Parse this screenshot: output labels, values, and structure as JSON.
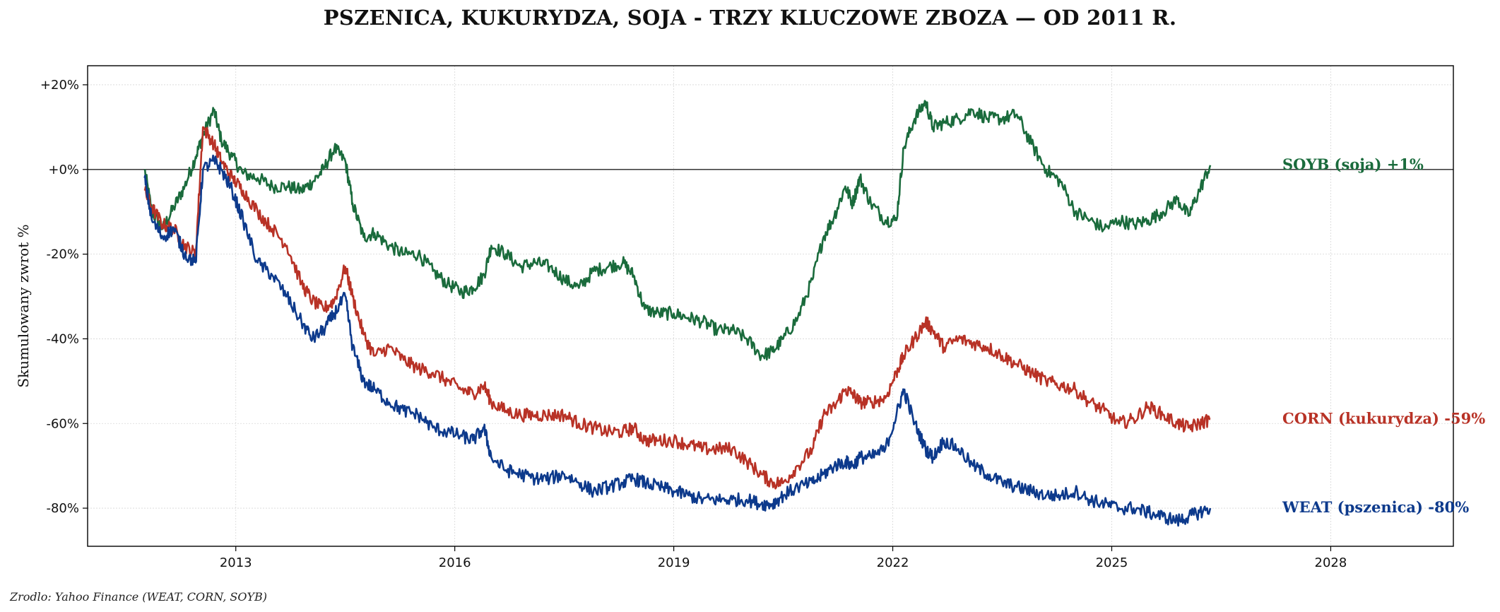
{
  "chart_data": {
    "type": "line",
    "title": "PSZENICA, KUKURYDZA, SOJA - TRZY KLUCZOWE ZBOZA — OD 2011 R.",
    "ylabel": "Skumulowany zwrot %",
    "xlabel": "",
    "x_ticks": [
      "2013",
      "2016",
      "2019",
      "2022",
      "2025",
      "2028"
    ],
    "x_tick_values": [
      2013,
      2016,
      2019,
      2022,
      2025,
      2028
    ],
    "y_ticks": [
      "+20%",
      "+0%",
      "-20%",
      "-40%",
      "-60%",
      "-80%"
    ],
    "y_tick_values": [
      20,
      0,
      -20,
      -40,
      -60,
      -80
    ],
    "xlim": [
      2010.97,
      2029.68
    ],
    "ylim": [
      -89,
      24.5
    ],
    "grid": true,
    "zero_line": true,
    "series": [
      {
        "name": "SOYB (soja)",
        "end_label": "SOYB (soja)  +1%",
        "color": "#1a6b3c",
        "x": [
          2011.75,
          2011.85,
          2012.0,
          2012.15,
          2012.3,
          2012.45,
          2012.55,
          2012.7,
          2012.8,
          2012.95,
          2013.1,
          2013.3,
          2013.5,
          2013.7,
          2013.9,
          2014.05,
          2014.2,
          2014.35,
          2014.5,
          2014.6,
          2014.75,
          2014.9,
          2015.1,
          2015.3,
          2015.5,
          2015.7,
          2015.9,
          2016.1,
          2016.25,
          2016.4,
          2016.5,
          2016.7,
          2016.9,
          2017.1,
          2017.3,
          2017.5,
          2017.7,
          2017.9,
          2018.1,
          2018.3,
          2018.45,
          2018.6,
          2018.8,
          2019.0,
          2019.2,
          2019.4,
          2019.6,
          2019.8,
          2020.0,
          2020.2,
          2020.35,
          2020.5,
          2020.7,
          2020.9,
          2021.05,
          2021.2,
          2021.35,
          2021.45,
          2021.55,
          2021.7,
          2021.9,
          2022.05,
          2022.15,
          2022.3,
          2022.45,
          2022.55,
          2022.7,
          2022.9,
          2023.1,
          2023.3,
          2023.5,
          2023.7,
          2023.9,
          2024.1,
          2024.3,
          2024.5,
          2024.7,
          2024.9,
          2025.1,
          2025.3,
          2025.5,
          2025.7,
          2025.9,
          2026.05,
          2026.2,
          2026.35
        ],
        "values": [
          0,
          -10,
          -14,
          -9,
          -4,
          3,
          8,
          14,
          7,
          3,
          -1,
          -2,
          -4,
          -4,
          -5,
          -3,
          0,
          5,
          2,
          -8,
          -16,
          -15,
          -18,
          -20,
          -20,
          -24,
          -27,
          -29,
          -28,
          -25,
          -18,
          -20,
          -23,
          -22,
          -23,
          -26,
          -28,
          -24,
          -23,
          -22,
          -25,
          -33,
          -34,
          -34,
          -35,
          -36,
          -38,
          -38,
          -40,
          -44,
          -43,
          -40,
          -35,
          -26,
          -16,
          -11,
          -4,
          -8,
          -2,
          -8,
          -12,
          -12,
          5,
          12,
          16,
          10,
          11,
          12,
          14,
          12,
          12,
          13,
          6,
          0,
          -3,
          -10,
          -12,
          -14,
          -12,
          -13,
          -12,
          -10,
          -7,
          -11,
          -5,
          1
        ]
      },
      {
        "name": "CORN (kukurydza)",
        "end_label": "CORN (kukurydza)  -59%",
        "color": "#b83226",
        "x": [
          2011.75,
          2011.85,
          2012.0,
          2012.15,
          2012.3,
          2012.45,
          2012.55,
          2012.7,
          2012.8,
          2012.95,
          2013.1,
          2013.3,
          2013.5,
          2013.7,
          2013.9,
          2014.05,
          2014.2,
          2014.35,
          2014.5,
          2014.6,
          2014.75,
          2014.9,
          2015.1,
          2015.3,
          2015.5,
          2015.7,
          2015.9,
          2016.1,
          2016.25,
          2016.4,
          2016.5,
          2016.7,
          2016.9,
          2017.1,
          2017.3,
          2017.5,
          2017.7,
          2017.9,
          2018.1,
          2018.3,
          2018.45,
          2018.6,
          2018.8,
          2019.0,
          2019.2,
          2019.4,
          2019.6,
          2019.8,
          2020.0,
          2020.2,
          2020.35,
          2020.5,
          2020.7,
          2020.9,
          2021.05,
          2021.2,
          2021.35,
          2021.45,
          2021.55,
          2021.7,
          2021.9,
          2022.05,
          2022.15,
          2022.3,
          2022.45,
          2022.55,
          2022.7,
          2022.9,
          2023.1,
          2023.3,
          2023.5,
          2023.7,
          2023.9,
          2024.1,
          2024.3,
          2024.5,
          2024.7,
          2024.9,
          2025.1,
          2025.3,
          2025.5,
          2025.7,
          2025.9,
          2026.05,
          2026.2,
          2026.35
        ],
        "values": [
          -5,
          -9,
          -13,
          -14,
          -18,
          -20,
          10,
          6,
          2,
          -2,
          -5,
          -10,
          -14,
          -18,
          -27,
          -31,
          -33,
          -31,
          -23,
          -30,
          -39,
          -44,
          -42,
          -45,
          -47,
          -48,
          -50,
          -52,
          -53,
          -51,
          -55,
          -57,
          -58,
          -58,
          -58,
          -58,
          -60,
          -61,
          -62,
          -62,
          -61,
          -64,
          -64,
          -64,
          -65,
          -66,
          -66,
          -66,
          -69,
          -72,
          -74,
          -74,
          -70,
          -66,
          -58,
          -56,
          -52,
          -53,
          -55,
          -55,
          -54,
          -48,
          -44,
          -40,
          -36,
          -38,
          -42,
          -40,
          -41,
          -42,
          -44,
          -46,
          -48,
          -50,
          -51,
          -52,
          -55,
          -57,
          -60,
          -59,
          -56,
          -58,
          -60,
          -61,
          -60,
          -59
        ]
      },
      {
        "name": "WEAT (pszenica)",
        "end_label": "WEAT (pszenica)  -80%",
        "color": "#0d3a8c",
        "x": [
          2011.75,
          2011.85,
          2012.0,
          2012.15,
          2012.3,
          2012.45,
          2012.55,
          2012.7,
          2012.8,
          2012.95,
          2013.1,
          2013.3,
          2013.5,
          2013.7,
          2013.9,
          2014.05,
          2014.2,
          2014.35,
          2014.5,
          2014.6,
          2014.75,
          2014.9,
          2015.1,
          2015.3,
          2015.5,
          2015.7,
          2015.9,
          2016.1,
          2016.25,
          2016.4,
          2016.5,
          2016.7,
          2016.9,
          2017.1,
          2017.3,
          2017.5,
          2017.7,
          2017.9,
          2018.1,
          2018.3,
          2018.45,
          2018.6,
          2018.8,
          2019.0,
          2019.2,
          2019.4,
          2019.6,
          2019.8,
          2020.0,
          2020.2,
          2020.35,
          2020.5,
          2020.7,
          2020.9,
          2021.05,
          2021.2,
          2021.35,
          2021.45,
          2021.55,
          2021.7,
          2021.9,
          2022.05,
          2022.15,
          2022.3,
          2022.45,
          2022.55,
          2022.7,
          2022.9,
          2023.1,
          2023.3,
          2023.5,
          2023.7,
          2023.9,
          2024.1,
          2024.3,
          2024.5,
          2024.7,
          2024.9,
          2025.1,
          2025.3,
          2025.5,
          2025.7,
          2025.9,
          2026.05,
          2026.2,
          2026.35
        ],
        "values": [
          -2,
          -12,
          -16,
          -14,
          -20,
          -22,
          0,
          2,
          0,
          -5,
          -12,
          -22,
          -25,
          -30,
          -36,
          -40,
          -38,
          -34,
          -30,
          -42,
          -50,
          -52,
          -55,
          -57,
          -58,
          -61,
          -62,
          -63,
          -64,
          -61,
          -68,
          -71,
          -72,
          -73,
          -73,
          -72,
          -74,
          -76,
          -75,
          -74,
          -73,
          -74,
          -75,
          -76,
          -77,
          -78,
          -78,
          -78,
          -78,
          -79,
          -79,
          -77,
          -75,
          -74,
          -72,
          -70,
          -69,
          -70,
          -68,
          -68,
          -66,
          -58,
          -52,
          -60,
          -66,
          -68,
          -64,
          -66,
          -70,
          -72,
          -74,
          -75,
          -76,
          -77,
          -77,
          -76,
          -78,
          -79,
          -80,
          -80,
          -81,
          -82,
          -83,
          -82,
          -81,
          -80
        ]
      }
    ]
  },
  "source_note": "Zrodlo: Yahoo Finance (WEAT, CORN, SOYB)"
}
